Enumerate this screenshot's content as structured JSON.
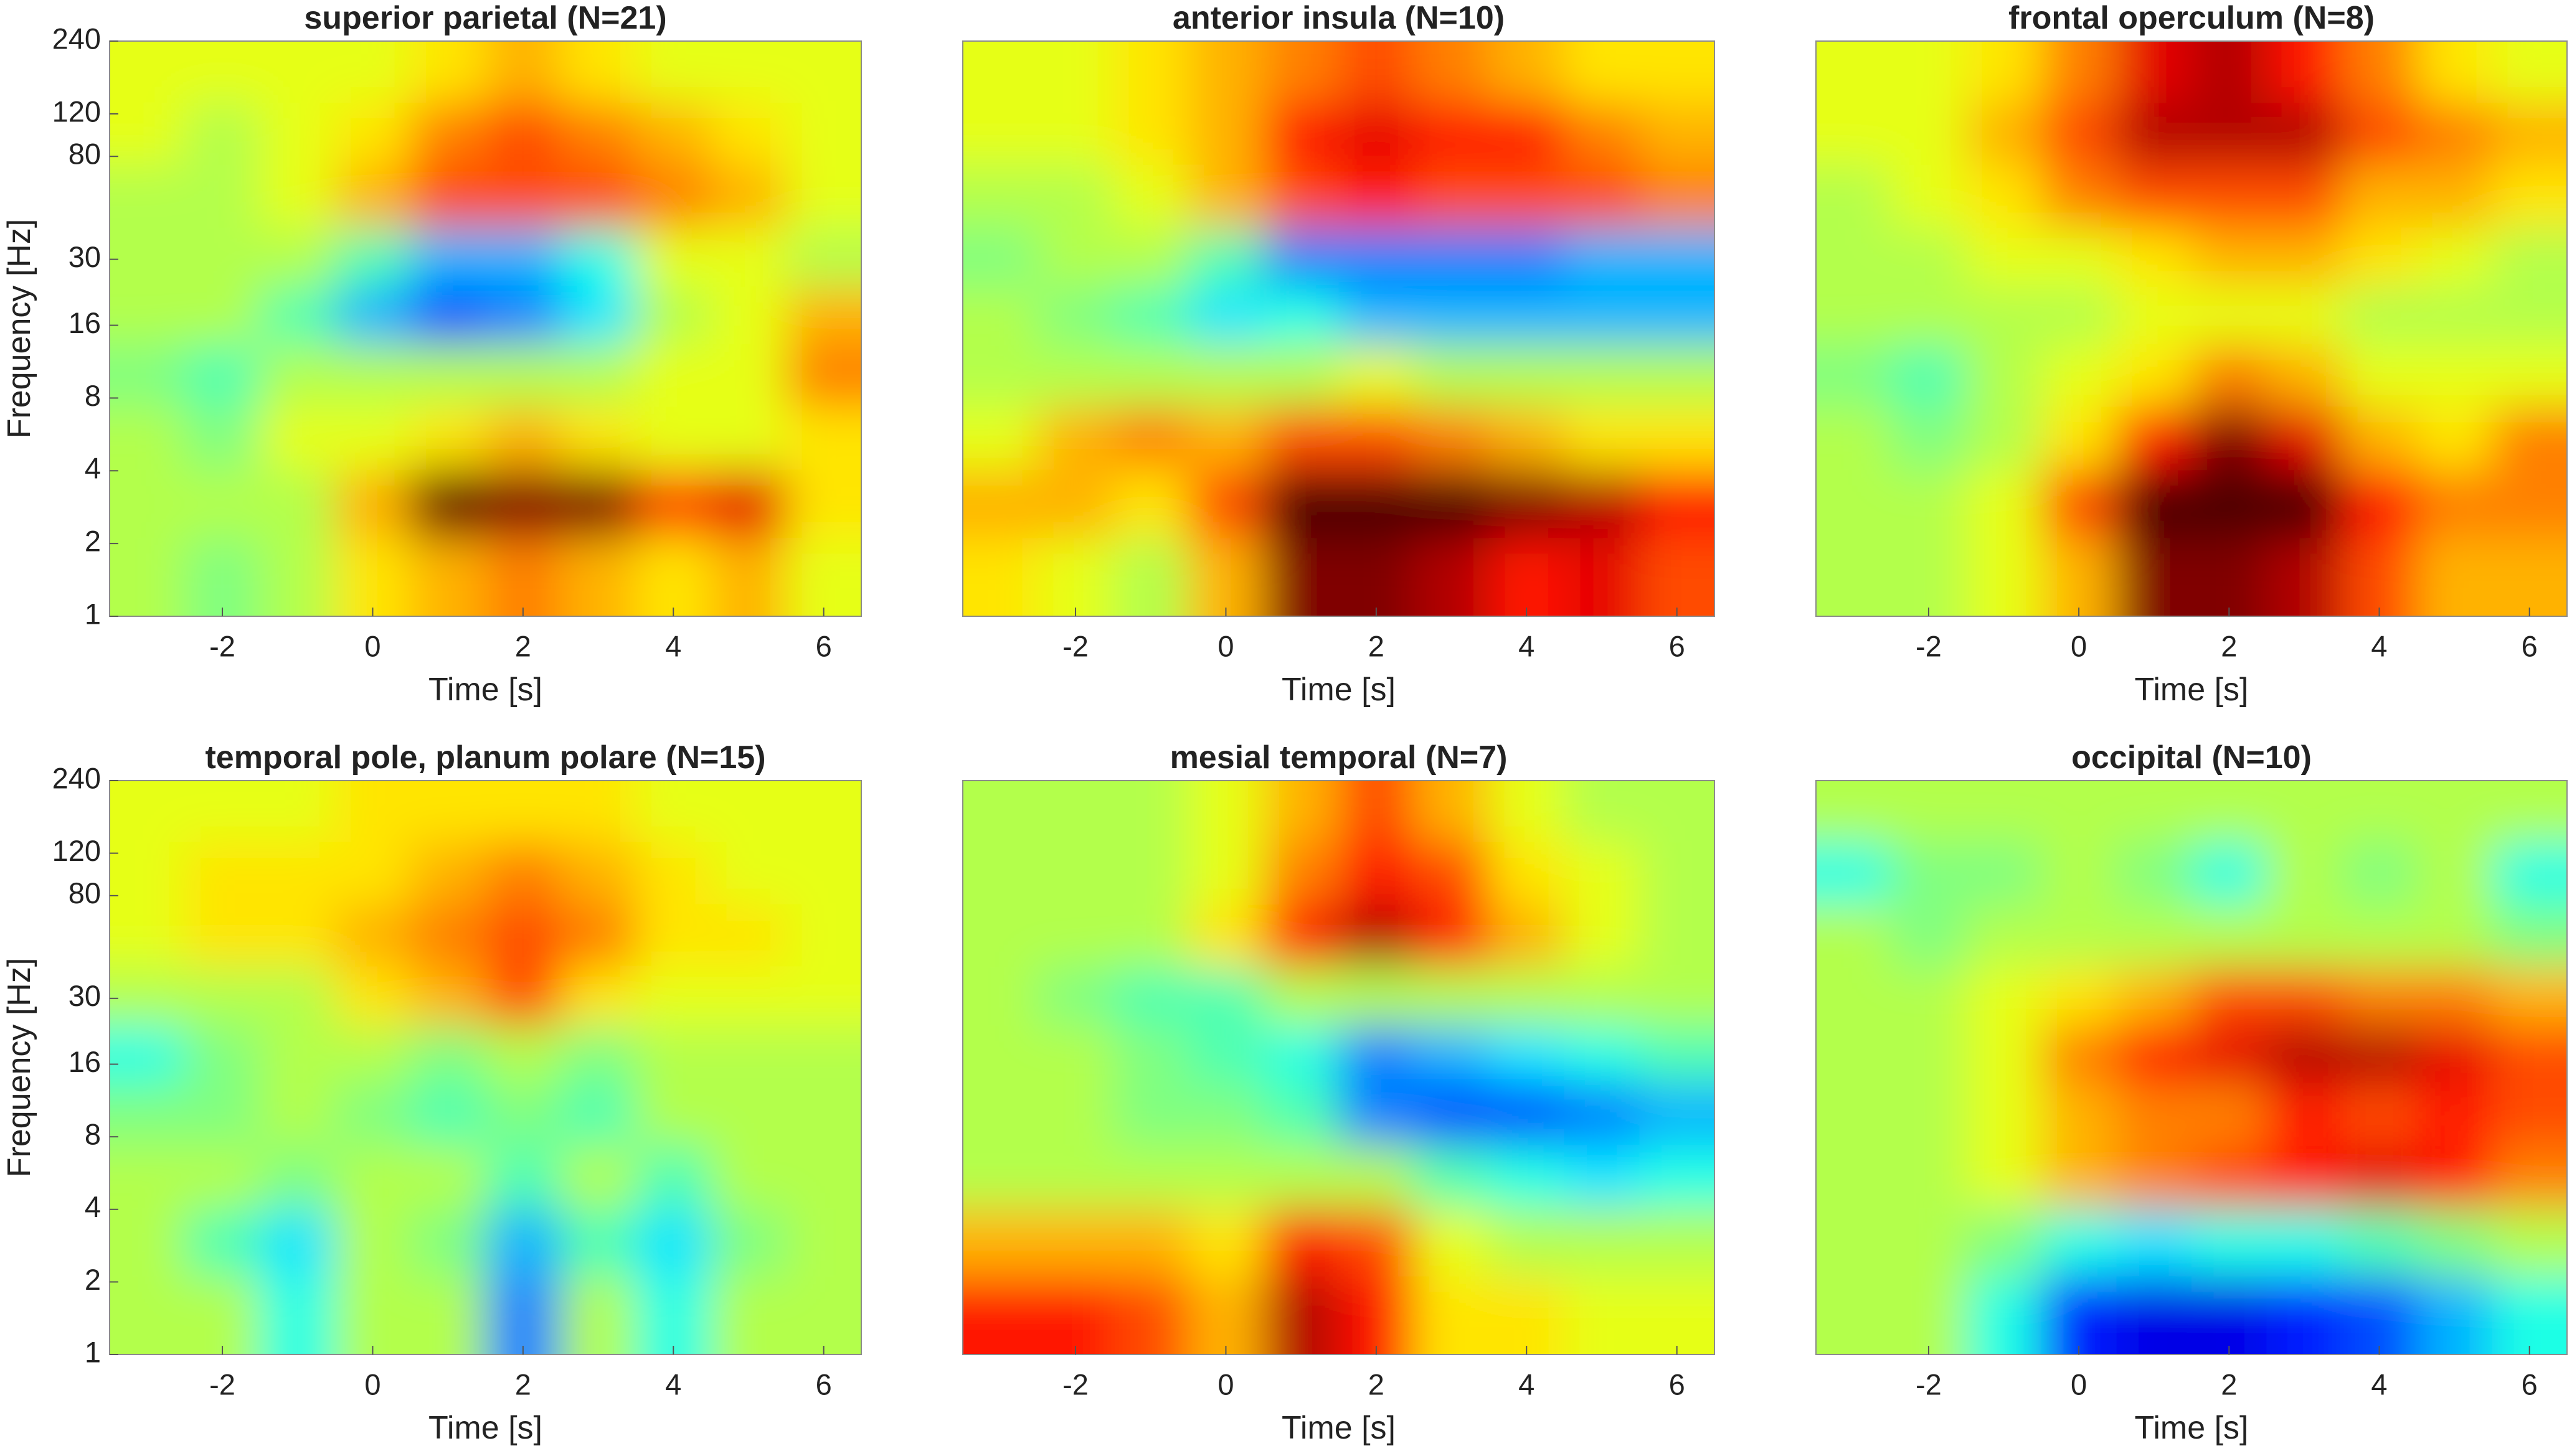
{
  "chart_data": [
    {
      "type": "heatmap",
      "title": "superior parietal (N=21)",
      "xlabel": "Time [s]",
      "ylabel": "Frequency [Hz]",
      "colormap": "jet",
      "clim": [
        -1.1,
        0.9
      ],
      "yscale": "log",
      "xlim": [
        -3.5,
        6.5
      ],
      "xticks": [
        -2,
        0,
        2,
        4,
        6
      ],
      "ylim": [
        1,
        240
      ],
      "yticks": [
        1,
        2,
        4,
        8,
        16,
        30,
        80,
        120,
        240
      ],
      "x": [
        -3,
        -2,
        -1,
        0,
        1,
        2,
        3,
        4,
        5,
        6
      ],
      "y": [
        1.5,
        3,
        5.5,
        10,
        18,
        30,
        55,
        100,
        180
      ],
      "z": [
        [
          0,
          -0.1,
          0,
          0.2,
          0.3,
          0.4,
          0.3,
          0.2,
          0.3,
          0.1
        ],
        [
          0,
          0,
          0,
          0.3,
          0.95,
          0.9,
          0.9,
          0.5,
          0.7,
          0.2
        ],
        [
          0,
          -0.1,
          0.1,
          0.1,
          0.2,
          0.3,
          0.2,
          0.1,
          0.1,
          0.2
        ],
        [
          -0.1,
          -0.2,
          0,
          0,
          0,
          0,
          0,
          0.1,
          0.1,
          0.4
        ],
        [
          0,
          0,
          -0.2,
          -0.5,
          -0.7,
          -0.6,
          -0.4,
          0,
          0.1,
          0.3
        ],
        [
          0,
          0,
          0,
          -0.2,
          -0.5,
          -0.5,
          -0.3,
          0.1,
          0.1,
          0
        ],
        [
          0,
          0,
          0.1,
          0.3,
          0.5,
          0.5,
          0.5,
          0.4,
          0.3,
          0.1
        ],
        [
          0.1,
          0,
          0.1,
          0.2,
          0.4,
          0.5,
          0.4,
          0.3,
          0.2,
          0.1
        ],
        [
          0.1,
          0.1,
          0.1,
          0.1,
          0.2,
          0.3,
          0.2,
          0.1,
          0.1,
          0.1
        ]
      ]
    },
    {
      "type": "heatmap",
      "title": "anterior insula (N=10)",
      "xlabel": "Time [s]",
      "colormap": "jet",
      "clim": [
        -1.1,
        0.9
      ],
      "yscale": "log",
      "xlim": [
        -3.5,
        6.5
      ],
      "xticks": [
        -2,
        0,
        2,
        4,
        6
      ],
      "ylim": [
        1,
        240
      ],
      "x": [
        -3,
        -2,
        -1,
        0,
        1,
        2,
        3,
        4,
        5,
        6
      ],
      "y": [
        1.5,
        3,
        5.5,
        10,
        18,
        30,
        55,
        100,
        180
      ],
      "z": [
        [
          0.2,
          0.1,
          0,
          0.3,
          0.9,
          0.9,
          0.8,
          0.6,
          0.7,
          0.5
        ],
        [
          0.3,
          0.3,
          0.2,
          0.5,
          1,
          1,
          1,
          0.9,
          0.8,
          0.6
        ],
        [
          0.1,
          0.3,
          0.4,
          0.3,
          0.5,
          0.5,
          0.4,
          0.3,
          0.2,
          0.2
        ],
        [
          0,
          0,
          0,
          0,
          0,
          0.1,
          0,
          0,
          0,
          0
        ],
        [
          0,
          -0.1,
          -0.2,
          -0.4,
          -0.3,
          -0.5,
          -0.5,
          -0.5,
          -0.5,
          -0.5
        ],
        [
          -0.1,
          0,
          0,
          -0.2,
          -0.6,
          -0.6,
          -0.6,
          -0.6,
          -0.5,
          -0.5
        ],
        [
          0,
          0,
          0.1,
          0.3,
          0.5,
          0.6,
          0.5,
          0.5,
          0.5,
          0.4
        ],
        [
          0.1,
          0.1,
          0.2,
          0.3,
          0.6,
          0.7,
          0.6,
          0.6,
          0.4,
          0.3
        ],
        [
          0.1,
          0.1,
          0.2,
          0.3,
          0.4,
          0.5,
          0.4,
          0.3,
          0.2,
          0.2
        ]
      ]
    },
    {
      "type": "heatmap",
      "title": "frontal operculum (N=8)",
      "xlabel": "Time [s]",
      "colormap": "jet",
      "clim": [
        -1.1,
        0.9
      ],
      "yscale": "log",
      "xlim": [
        -3.5,
        6.5
      ],
      "xticks": [
        -2,
        0,
        2,
        4,
        6
      ],
      "ylim": [
        1,
        240
      ],
      "x": [
        -3,
        -2,
        -1,
        0,
        1,
        2,
        3,
        4,
        5,
        6
      ],
      "y": [
        1.5,
        3,
        5.5,
        10,
        18,
        30,
        55,
        100,
        180
      ],
      "z": [
        [
          0,
          0,
          0.1,
          0.3,
          0.9,
          0.9,
          0.8,
          0.5,
          0.3,
          0.3
        ],
        [
          0,
          0,
          0.1,
          0.5,
          1,
          1,
          1,
          0.6,
          0.4,
          0.4
        ],
        [
          0,
          -0.1,
          0,
          0.2,
          0.6,
          0.9,
          0.7,
          0.3,
          0.2,
          0.4
        ],
        [
          -0.1,
          -0.2,
          0,
          0.1,
          0.2,
          0.4,
          0.3,
          0.1,
          0.1,
          0.1
        ],
        [
          0,
          0,
          0,
          0,
          0.1,
          0.1,
          0.1,
          0,
          0,
          0
        ],
        [
          0,
          0,
          0.1,
          0.1,
          0.2,
          0.3,
          0.3,
          0.2,
          0.1,
          0
        ],
        [
          0,
          0.1,
          0.2,
          0.4,
          0.5,
          0.5,
          0.5,
          0.3,
          0.3,
          0.2
        ],
        [
          0.1,
          0.1,
          0.3,
          0.5,
          0.8,
          0.8,
          0.8,
          0.5,
          0.4,
          0.3
        ],
        [
          0.1,
          0.1,
          0.2,
          0.4,
          0.7,
          0.8,
          0.6,
          0.4,
          0.2,
          0.1
        ]
      ]
    },
    {
      "type": "heatmap",
      "title": "temporal pole, planum polare (N=15)",
      "xlabel": "Time [s]",
      "ylabel": "Frequency [Hz]",
      "colormap": "jet",
      "clim": [
        -1.1,
        0.9
      ],
      "yscale": "log",
      "xlim": [
        -3.5,
        6.5
      ],
      "xticks": [
        -2,
        0,
        2,
        4,
        6
      ],
      "ylim": [
        1,
        240
      ],
      "yticks": [
        1,
        2,
        4,
        8,
        16,
        30,
        80,
        120,
        240
      ],
      "x": [
        -3,
        -2,
        -1,
        0,
        1,
        2,
        3,
        4,
        5,
        6
      ],
      "y": [
        1.5,
        3,
        5.5,
        10,
        18,
        30,
        55,
        100,
        180
      ],
      "z": [
        [
          0,
          0,
          -0.3,
          0,
          0,
          -0.6,
          0,
          -0.3,
          0,
          0
        ],
        [
          0,
          -0.2,
          -0.4,
          0,
          -0.1,
          -0.5,
          -0.2,
          -0.4,
          -0.1,
          0
        ],
        [
          0,
          0,
          -0.1,
          0,
          0,
          -0.2,
          0,
          -0.2,
          0,
          0
        ],
        [
          -0.1,
          -0.1,
          0,
          -0.1,
          -0.2,
          -0.1,
          -0.2,
          0,
          0,
          0
        ],
        [
          -0.3,
          -0.1,
          0,
          0,
          -0.1,
          0,
          -0.1,
          0,
          0,
          0
        ],
        [
          0,
          0,
          0,
          0.2,
          0.3,
          0.5,
          0.2,
          0.1,
          0.1,
          0.1
        ],
        [
          0.1,
          0.2,
          0.2,
          0.3,
          0.4,
          0.5,
          0.4,
          0.2,
          0.2,
          0.1
        ],
        [
          0.1,
          0.2,
          0.2,
          0.2,
          0.3,
          0.4,
          0.3,
          0.2,
          0.1,
          0.1
        ],
        [
          0.1,
          0.1,
          0.1,
          0.2,
          0.2,
          0.2,
          0.2,
          0.1,
          0.1,
          0.1
        ]
      ]
    },
    {
      "type": "heatmap",
      "title": "mesial temporal (N=7)",
      "xlabel": "Time [s]",
      "colormap": "jet",
      "clim": [
        -1.1,
        0.9
      ],
      "yscale": "log",
      "xlim": [
        -3.5,
        6.5
      ],
      "xticks": [
        -2,
        0,
        2,
        4,
        6
      ],
      "ylim": [
        1,
        240
      ],
      "x": [
        -3,
        -2,
        -1,
        0,
        1,
        2,
        3,
        4,
        5,
        6
      ],
      "y": [
        1.5,
        3,
        5.5,
        10,
        18,
        30,
        55,
        100,
        180
      ],
      "z": [
        [
          0.6,
          0.6,
          0.5,
          0.3,
          0.8,
          0.6,
          0.2,
          0.2,
          0.1,
          0.1
        ],
        [
          0.3,
          0.3,
          0.3,
          0.2,
          0.6,
          0.5,
          0.1,
          0,
          0,
          0
        ],
        [
          0,
          0,
          0,
          0,
          0,
          0,
          -0.2,
          -0.3,
          -0.4,
          -0.3
        ],
        [
          0,
          0,
          -0.1,
          -0.1,
          -0.2,
          -0.6,
          -0.7,
          -0.7,
          -0.6,
          -0.5
        ],
        [
          0,
          0,
          -0.1,
          -0.2,
          -0.3,
          -0.6,
          -0.5,
          -0.4,
          -0.3,
          -0.2
        ],
        [
          0,
          -0.1,
          -0.2,
          -0.2,
          0,
          0,
          0,
          0,
          0,
          0
        ],
        [
          0,
          0,
          0,
          0.2,
          0.6,
          0.8,
          0.6,
          0.3,
          0.1,
          0
        ],
        [
          0,
          0,
          0,
          0.1,
          0.4,
          0.6,
          0.5,
          0.2,
          0.1,
          0
        ],
        [
          0,
          0,
          0,
          0.1,
          0.3,
          0.5,
          0.3,
          0.1,
          0,
          0
        ]
      ]
    },
    {
      "type": "heatmap",
      "title": "occipital (N=10)",
      "xlabel": "Time [s]",
      "colormap": "jet",
      "clim": [
        -1.1,
        0.9
      ],
      "yscale": "log",
      "xlim": [
        -3.5,
        6.5
      ],
      "xticks": [
        -2,
        0,
        2,
        4,
        6
      ],
      "ylim": [
        1,
        240
      ],
      "x": [
        -3,
        -2,
        -1,
        0,
        1,
        2,
        3,
        4,
        5,
        6
      ],
      "y": [
        1.5,
        3,
        5.5,
        10,
        18,
        30,
        55,
        100,
        180
      ],
      "z": [
        [
          0,
          0,
          -0.3,
          -0.8,
          -0.9,
          -0.9,
          -0.8,
          -0.7,
          -0.5,
          -0.3
        ],
        [
          0,
          0,
          -0.1,
          -0.3,
          -0.4,
          -0.3,
          -0.3,
          -0.2,
          -0.1,
          0
        ],
        [
          0,
          0,
          0.1,
          0.3,
          0.4,
          0.5,
          0.6,
          0.7,
          0.6,
          0.4
        ],
        [
          0,
          0,
          0.1,
          0.3,
          0.4,
          0.4,
          0.6,
          0.5,
          0.6,
          0.5
        ],
        [
          0,
          0,
          0.1,
          0.4,
          0.6,
          0.7,
          0.8,
          0.8,
          0.7,
          0.5
        ],
        [
          0,
          0,
          0.1,
          0.2,
          0.3,
          0.5,
          0.5,
          0.4,
          0.4,
          0.3
        ],
        [
          0,
          -0.1,
          0,
          0,
          0,
          0,
          0,
          0,
          0,
          -0.1
        ],
        [
          -0.3,
          -0.1,
          -0.1,
          0,
          -0.1,
          -0.3,
          0,
          -0.1,
          0,
          -0.3
        ],
        [
          0,
          0,
          0,
          0,
          0,
          0,
          0,
          0,
          0,
          0
        ]
      ]
    }
  ]
}
